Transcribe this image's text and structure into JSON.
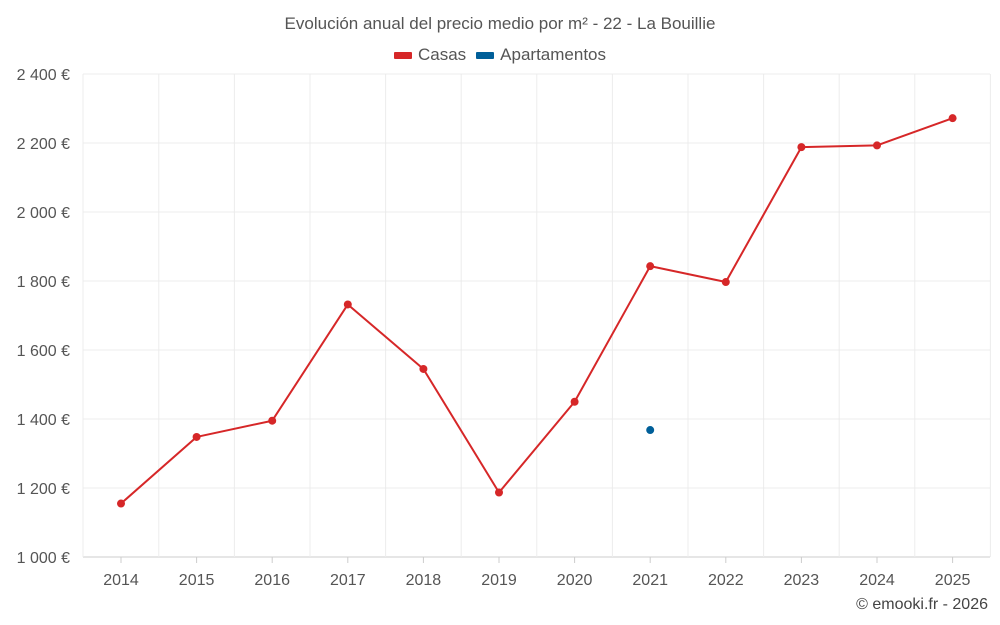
{
  "chart_data": {
    "type": "line",
    "title": "Evolución anual del precio medio por m² - 22 - La Bouillie",
    "categories": [
      "2014",
      "2015",
      "2016",
      "2017",
      "2018",
      "2019",
      "2020",
      "2021",
      "2022",
      "2023",
      "2024",
      "2025"
    ],
    "series": [
      {
        "name": "Casas",
        "color": "#d62728",
        "values": [
          1155,
          1348,
          1395,
          1732,
          1545,
          1187,
          1450,
          1843,
          1797,
          2188,
          2193,
          2272
        ]
      },
      {
        "name": "Apartamentos",
        "color": "#005f99",
        "values": [
          null,
          null,
          null,
          null,
          null,
          null,
          null,
          1368,
          null,
          null,
          null,
          null
        ]
      }
    ],
    "ylim": [
      1000,
      2400
    ],
    "yticks": [
      1000,
      1200,
      1400,
      1600,
      1800,
      2000,
      2200,
      2400
    ],
    "ytick_labels": [
      "1 000 €",
      "1 200 €",
      "1 400 €",
      "1 600 €",
      "1 800 €",
      "2 000 €",
      "2 200 €",
      "2 400 €"
    ],
    "xlabel": "",
    "ylabel": "",
    "grid": true,
    "legend_position": "top-center"
  },
  "footer": {
    "credit": "© emooki.fr - 2026"
  }
}
